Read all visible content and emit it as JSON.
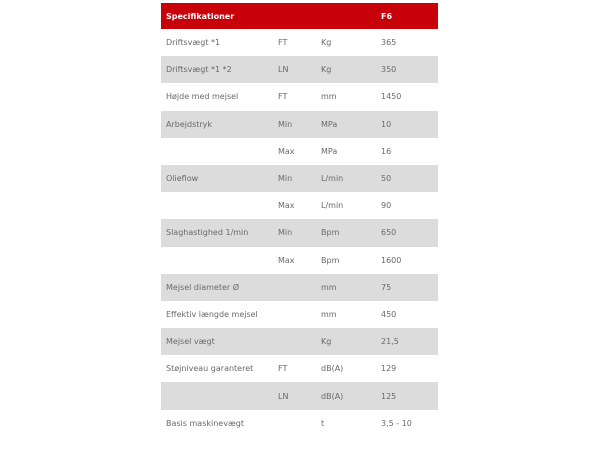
{
  "accent": "#c8000a",
  "header": [
    "Specifikationer",
    "",
    "",
    "F6"
  ],
  "rows": [
    [
      "Driftsvægt *1",
      "FT",
      "Kg",
      "365"
    ],
    [
      "Driftsvægt *1 *2",
      "LN",
      "Kg",
      "350"
    ],
    [
      "Højde med mejsel",
      "FT",
      "mm",
      "1450"
    ],
    [
      "Arbejdstryk",
      "Min",
      "MPa",
      "10"
    ],
    [
      "",
      "Max",
      "MPa",
      "16"
    ],
    [
      "Olieflow",
      "Min",
      "L/min",
      "50"
    ],
    [
      "",
      "Max",
      "L/min",
      "90"
    ],
    [
      "Slaghastighed 1/min",
      "Min",
      "Bpm",
      "650"
    ],
    [
      "",
      "Max",
      "Bpm",
      "1600"
    ],
    [
      "Mejsel diameter Ø",
      "",
      "mm",
      "75"
    ],
    [
      "Effektiv længde mejsel",
      "",
      "mm",
      "450"
    ],
    [
      "Mejsel vægt",
      "",
      "Kg",
      "21,5"
    ],
    [
      "Støjniveau garanteret",
      "FT",
      "dB(A)",
      "129"
    ],
    [
      "",
      "LN",
      "dB(A)",
      "125"
    ],
    [
      "Basis maskinevægt",
      "",
      "t",
      "3,5 - 10"
    ]
  ]
}
